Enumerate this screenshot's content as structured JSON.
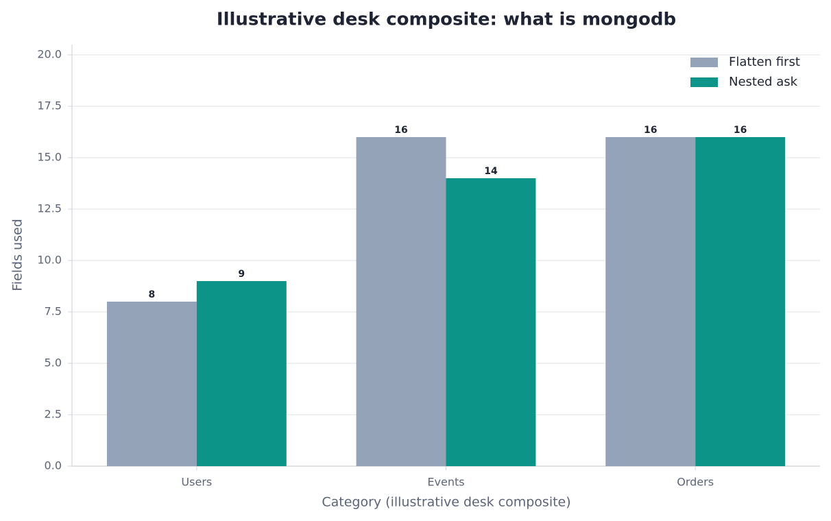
{
  "chart_data": {
    "type": "bar",
    "title": "Illustrative desk composite: what is mongodb",
    "x_label": "Category (illustrative desk composite)",
    "y_label": "Fields used",
    "categories": [
      "Users",
      "Events",
      "Orders"
    ],
    "series": [
      {
        "name": "Flatten first",
        "color": "#94a3b8",
        "values": [
          8,
          16,
          16
        ]
      },
      {
        "name": "Nested ask",
        "color": "#0d9488",
        "values": [
          9,
          14,
          16
        ]
      }
    ],
    "ylim": [
      0,
      20.5
    ],
    "yticks": [
      {
        "value": 0,
        "label": "0.0"
      },
      2.5,
      {
        "value": 5,
        "label": "5.0"
      },
      7.5,
      {
        "value": 10,
        "label": "10.0"
      },
      12.5,
      {
        "value": 15,
        "label": "15.0"
      },
      17.5,
      {
        "value": 20,
        "label": "20.0"
      }
    ],
    "grid": true,
    "legend": "upper right"
  }
}
